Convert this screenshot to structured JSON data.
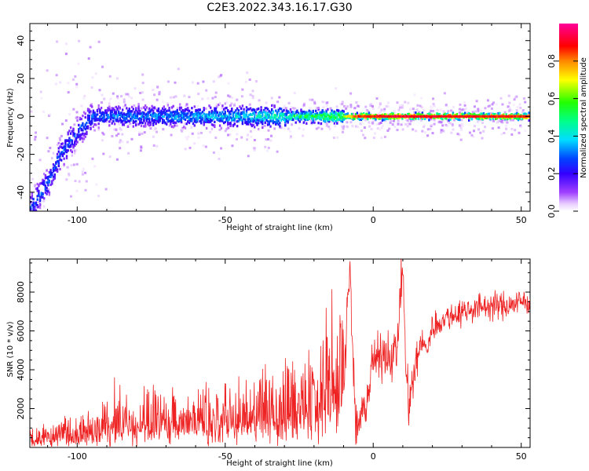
{
  "title": "C2E3.2022.343.16.17.G30",
  "chart_data": [
    {
      "type": "heatmap",
      "xlabel": "Height of straight line (km)",
      "ylabel": "Frequency (Hz)",
      "xlim": [
        -116,
        53
      ],
      "ylim": [
        -50,
        49
      ],
      "x_ticks": [
        -100,
        -50,
        0,
        50
      ],
      "y_ticks": [
        -40,
        -20,
        0,
        20,
        40
      ],
      "colorbar": {
        "label": "Normalized spectral amplitude",
        "range": [
          0,
          1
        ],
        "ticks": [
          "0.0",
          "0.2",
          "0.4",
          "0.6",
          "0.8"
        ],
        "colormap": "rainbow (white-violet-blue-cyan-green-yellow-red-magenta)"
      },
      "ridge": [
        {
          "x": -116,
          "y": -48
        },
        {
          "x": -110,
          "y": -35
        },
        {
          "x": -106,
          "y": -20
        },
        {
          "x": -100,
          "y": -8
        },
        {
          "x": -95,
          "y": 0
        },
        {
          "x": -80,
          "y": 0
        },
        {
          "x": -60,
          "y": 0
        },
        {
          "x": -40,
          "y": 0
        },
        {
          "x": -20,
          "y": 0
        },
        {
          "x": 0,
          "y": 0
        },
        {
          "x": 20,
          "y": 0
        },
        {
          "x": 53,
          "y": 0
        }
      ],
      "ridge_amplitude": [
        {
          "x": -116,
          "a": 0.3
        },
        {
          "x": -100,
          "a": 0.3
        },
        {
          "x": -80,
          "a": 0.35
        },
        {
          "x": -50,
          "a": 0.4
        },
        {
          "x": -30,
          "a": 0.5
        },
        {
          "x": -10,
          "a": 0.7
        },
        {
          "x": -5,
          "a": 0.9
        },
        {
          "x": 10,
          "a": 0.95
        },
        {
          "x": 53,
          "a": 0.9
        }
      ]
    },
    {
      "type": "line",
      "xlabel": "Height of straight line (km)",
      "ylabel": "SNR (10 * v/v)",
      "xlim": [
        -116,
        53
      ],
      "ylim": [
        0,
        9700
      ],
      "x_ticks": [
        -100,
        -50,
        0,
        50
      ],
      "y_ticks": [
        2000,
        4000,
        6000,
        8000
      ],
      "series": [
        {
          "color": "#ee2222",
          "x": [
            -116,
            -110,
            -105,
            -100,
            -95,
            -90,
            -85,
            -80,
            -75,
            -70,
            -65,
            -60,
            -55,
            -50,
            -45,
            -40,
            -35,
            -30,
            -25,
            -20,
            -15,
            -12,
            -10,
            -8,
            -6,
            -4,
            -2,
            0,
            2,
            4,
            6,
            8,
            10,
            11,
            12,
            14,
            16,
            18,
            20,
            25,
            30,
            35,
            40,
            45,
            50,
            53
          ],
          "y": [
            400,
            400,
            500,
            600,
            700,
            900,
            1100,
            1200,
            1100,
            1000,
            1100,
            1200,
            1200,
            1300,
            1300,
            1400,
            1500,
            1600,
            2000,
            2200,
            2600,
            3000,
            3300,
            9500,
            1000,
            1500,
            2500,
            4500,
            4500,
            5000,
            4700,
            5000,
            9600,
            4000,
            2200,
            3800,
            5500,
            5000,
            6200,
            6700,
            7000,
            7200,
            7300,
            7300,
            7500,
            7500
          ]
        }
      ]
    }
  ]
}
